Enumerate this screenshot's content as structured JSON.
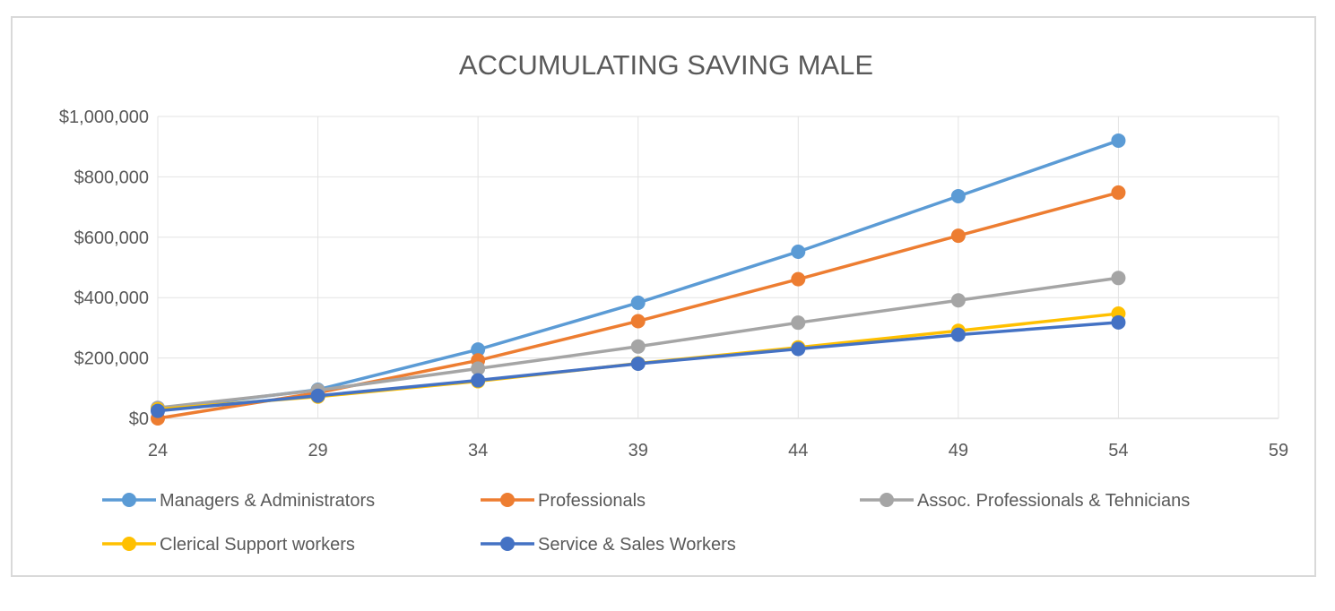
{
  "chart_data": {
    "type": "line",
    "title": "ACCUMULATING SAVING MALE",
    "xlabel": "",
    "ylabel": "",
    "x": [
      24,
      29,
      34,
      39,
      44,
      49,
      54
    ],
    "xlim": [
      24,
      59
    ],
    "x_ticks": [
      "24",
      "29",
      "34",
      "39",
      "44",
      "49",
      "54",
      "59"
    ],
    "ylim": [
      0,
      1000000
    ],
    "y_ticks": [
      "$0",
      "$200,000",
      "$400,000",
      "$600,000",
      "$800,000",
      "$1,000,000"
    ],
    "grid": true,
    "legend_position": "bottom",
    "series": [
      {
        "name": "Managers & Administrators",
        "color": "#5b9bd5",
        "values": [
          30000,
          95000,
          228000,
          383000,
          552000,
          736000,
          920000
        ]
      },
      {
        "name": "Professionals",
        "color": "#ed7d31",
        "values": [
          0,
          85000,
          192000,
          322000,
          461000,
          605000,
          748000
        ]
      },
      {
        "name": "Assoc. Professionals & Tehnicians",
        "color": "#a5a5a5",
        "values": [
          35000,
          93000,
          165000,
          238000,
          317000,
          391000,
          465000
        ]
      },
      {
        "name": "Clerical Support workers",
        "color": "#ffc000",
        "values": [
          30000,
          72000,
          123000,
          182000,
          235000,
          290000,
          347000
        ]
      },
      {
        "name": "Service & Sales Workers",
        "color": "#4472c4",
        "values": [
          25000,
          75000,
          126000,
          181000,
          230000,
          277000,
          318000
        ]
      }
    ]
  }
}
